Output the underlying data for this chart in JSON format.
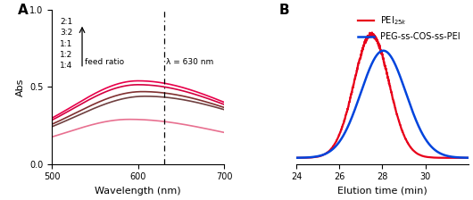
{
  "panel_A": {
    "xlabel": "Wavelength (nm)",
    "ylabel": "Abs",
    "xmin": 500,
    "xmax": 700,
    "ymin": 0,
    "ymax": 1.0,
    "yticks": [
      0,
      0.5,
      1.0
    ],
    "xticks": [
      500,
      600,
      700
    ],
    "vline_x": 630,
    "vline_label": "λ = 630 nm",
    "feed_ratios": [
      "2:1",
      "3:2",
      "1:1",
      "1:2",
      "1:4"
    ],
    "label": "A",
    "curves": [
      {
        "peak_abs": 0.54,
        "color": "#e8004a",
        "peak_x": 600,
        "sigma_l": 75,
        "sigma_r": 110,
        "base": 0.13
      },
      {
        "peak_abs": 0.515,
        "color": "#d40040",
        "peak_x": 600,
        "sigma_l": 75,
        "sigma_r": 112,
        "base": 0.125
      },
      {
        "peak_abs": 0.47,
        "color": "#803030",
        "peak_x": 605,
        "sigma_l": 78,
        "sigma_r": 115,
        "base": 0.115
      },
      {
        "peak_abs": 0.44,
        "color": "#704040",
        "peak_x": 608,
        "sigma_l": 80,
        "sigma_r": 118,
        "base": 0.11
      },
      {
        "peak_abs": 0.29,
        "color": "#e87090",
        "peak_x": 590,
        "sigma_l": 72,
        "sigma_r": 108,
        "base": 0.08
      }
    ]
  },
  "panel_B": {
    "xlabel": "Elution time (min)",
    "xmin": 24,
    "xmax": 32,
    "xticks": [
      24,
      26,
      28,
      30
    ],
    "label": "B",
    "legend_pei": "PEI$_{25k}$",
    "legend_peg": "PEG-ss-COS-ss-PEI",
    "red_color": "#e8001a",
    "blue_color": "#0044dd",
    "red_peak": 27.5,
    "red_sigma": 0.82,
    "red_amplitude": 1.0,
    "blue_peak": 28.05,
    "blue_sigma": 1.05,
    "blue_amplitude": 0.87
  }
}
